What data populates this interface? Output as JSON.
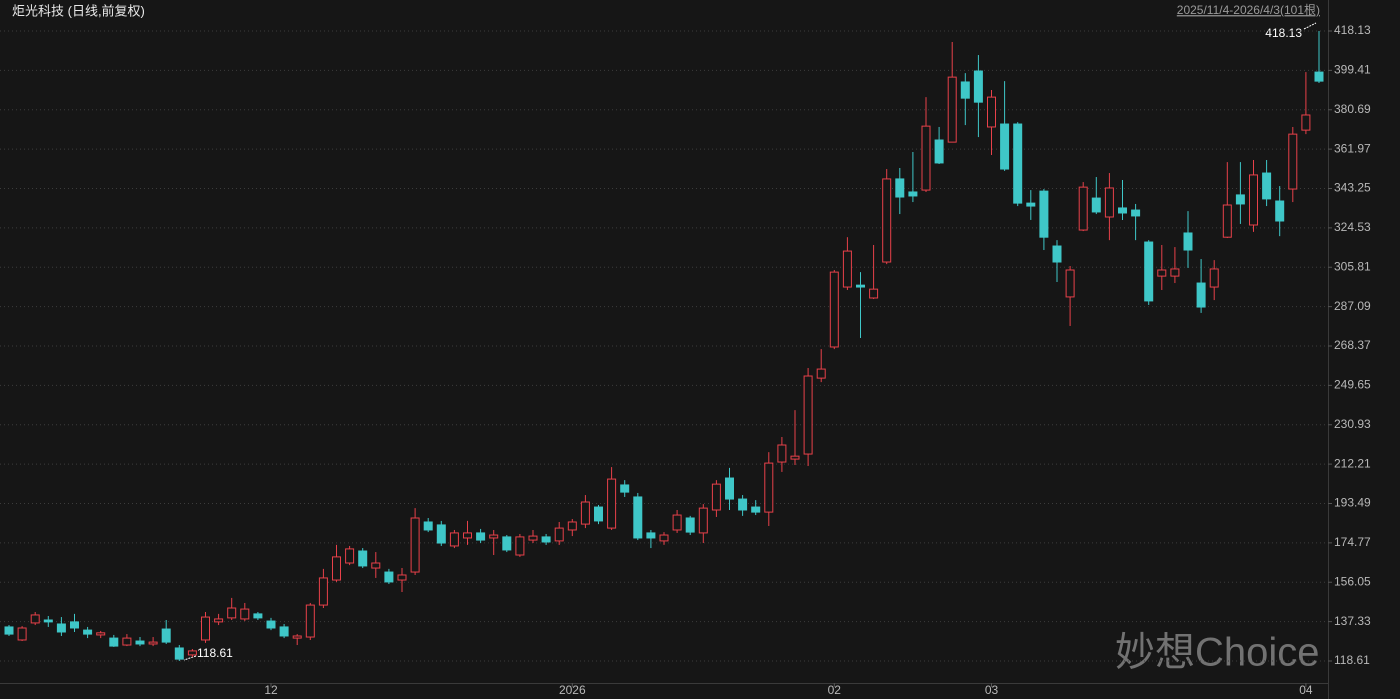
{
  "chart_data": {
    "type": "candlestick",
    "title": "炬光科技 (日线,前复权)",
    "subtitle": "2025/11/4-2026/4/3(101根)",
    "watermark": "妙想Choice",
    "annotations": [
      "418.13",
      "118.61"
    ],
    "up_color": "#e8414a",
    "down_color": "#3fc7c8",
    "grid": true,
    "ylim": [
      100.54,
      423.36
    ],
    "yticks": [
      118.61,
      137.33,
      156.05,
      174.77,
      193.49,
      212.21,
      230.93,
      249.65,
      268.37,
      287.09,
      305.81,
      324.53,
      343.25,
      361.97,
      380.69,
      399.41,
      418.13
    ],
    "categories": [
      null,
      null,
      null,
      null,
      null,
      null,
      null,
      null,
      null,
      null,
      null,
      null,
      null,
      null,
      null,
      null,
      null,
      null,
      null,
      null,
      "12",
      null,
      null,
      null,
      null,
      null,
      null,
      null,
      null,
      null,
      null,
      null,
      null,
      null,
      null,
      null,
      null,
      null,
      null,
      null,
      null,
      null,
      null,
      "2026",
      null,
      null,
      null,
      null,
      null,
      null,
      null,
      null,
      null,
      null,
      null,
      null,
      null,
      null,
      null,
      null,
      null,
      null,
      null,
      "02",
      null,
      null,
      null,
      null,
      null,
      null,
      null,
      null,
      null,
      null,
      null,
      "03",
      null,
      null,
      null,
      null,
      null,
      null,
      null,
      null,
      null,
      null,
      null,
      null,
      null,
      null,
      null,
      null,
      null,
      null,
      null,
      null,
      null,
      null,
      null,
      "04",
      null
    ],
    "open": [
      134.8,
      128.6,
      136.7,
      138.1,
      136.2,
      137.2,
      133.3,
      131.0,
      129.5,
      126.2,
      128.1,
      126.7,
      133.8,
      124.8,
      121.5,
      128.6,
      137.2,
      139.1,
      138.6,
      141.0,
      137.6,
      134.8,
      129.5,
      130.0,
      145.2,
      157.1,
      165.2,
      170.9,
      162.8,
      160.9,
      157.1,
      160.9,
      184.7,
      183.3,
      173.3,
      177.1,
      179.5,
      177.1,
      177.6,
      169.0,
      176.1,
      177.6,
      175.7,
      180.9,
      183.7,
      191.8,
      181.8,
      202.3,
      196.6,
      179.5,
      175.7,
      180.9,
      186.6,
      179.5,
      190.4,
      205.6,
      195.6,
      191.8,
      189.4,
      213.2,
      214.6,
      217.0,
      253.1,
      267.9,
      296.4,
      297.3,
      291.2,
      308.3,
      347.8,
      341.6,
      342.5,
      366.3,
      365.3,
      393.9,
      399.1,
      372.5,
      373.9,
      373.9,
      336.3,
      342.0,
      315.9,
      291.7,
      323.5,
      338.7,
      329.7,
      334.0,
      333.0,
      317.8,
      301.6,
      301.6,
      322.1,
      298.3,
      296.4,
      320.1,
      340.2,
      325.9,
      350.6,
      337.3,
      343.0,
      371.0,
      398.6
    ],
    "high": [
      135.7,
      135.2,
      141.9,
      140.0,
      139.5,
      141.0,
      134.8,
      132.9,
      131.0,
      131.4,
      130.0,
      130.0,
      138.1,
      126.2,
      124.3,
      141.9,
      141.0,
      148.6,
      146.2,
      141.9,
      139.1,
      136.2,
      131.4,
      146.2,
      162.4,
      173.8,
      173.3,
      172.3,
      170.4,
      162.4,
      162.8,
      191.3,
      186.6,
      185.2,
      180.9,
      185.2,
      181.4,
      180.9,
      178.5,
      179.0,
      180.9,
      179.0,
      184.7,
      186.1,
      197.5,
      192.8,
      210.8,
      204.6,
      198.5,
      180.9,
      179.9,
      190.4,
      187.6,
      193.2,
      204.6,
      210.4,
      197.5,
      195.1,
      217.9,
      225.1,
      237.9,
      257.9,
      266.9,
      304.5,
      320.1,
      303.5,
      316.4,
      352.5,
      353.0,
      360.6,
      386.7,
      372.5,
      412.9,
      398.1,
      406.7,
      390.1,
      394.3,
      374.8,
      342.5,
      343.0,
      318.7,
      306.4,
      346.3,
      348.7,
      350.6,
      347.3,
      335.9,
      318.7,
      316.4,
      315.4,
      332.5,
      309.7,
      309.2,
      355.8,
      355.8,
      356.8,
      356.8,
      344.4,
      372.5,
      398.6,
      418.13
    ],
    "low": [
      130.5,
      128.1,
      135.7,
      134.8,
      130.5,
      132.4,
      129.5,
      129.5,
      125.3,
      125.7,
      125.7,
      125.7,
      126.7,
      118.61,
      120.5,
      127.2,
      135.7,
      138.1,
      137.6,
      138.1,
      133.3,
      129.5,
      126.2,
      128.6,
      143.8,
      156.2,
      164.2,
      162.8,
      158.1,
      155.2,
      151.4,
      159.5,
      179.9,
      173.3,
      172.3,
      173.8,
      174.7,
      169.0,
      170.4,
      168.1,
      174.7,
      173.8,
      173.8,
      178.0,
      181.8,
      183.7,
      180.9,
      196.6,
      176.1,
      172.3,
      173.8,
      179.5,
      178.5,
      174.7,
      187.1,
      190.4,
      187.6,
      188.0,
      182.8,
      208.5,
      211.8,
      211.3,
      251.2,
      266.9,
      295.0,
      272.2,
      290.7,
      307.3,
      331.1,
      336.8,
      341.6,
      354.9,
      365.3,
      373.4,
      367.7,
      359.2,
      351.6,
      334.9,
      328.3,
      314.0,
      298.8,
      277.9,
      323.0,
      331.1,
      318.7,
      328.3,
      318.7,
      287.9,
      295.0,
      298.3,
      305.5,
      284.1,
      290.2,
      319.7,
      326.4,
      322.6,
      334.9,
      320.6,
      336.8,
      369.1,
      393.4
    ],
    "close": [
      131.4,
      134.3,
      140.5,
      137.2,
      132.4,
      134.3,
      131.4,
      132.0,
      125.7,
      129.5,
      126.7,
      127.6,
      127.6,
      119.5,
      123.4,
      139.5,
      138.6,
      143.8,
      143.3,
      139.1,
      134.3,
      130.5,
      130.5,
      145.2,
      158.1,
      168.1,
      171.9,
      163.8,
      165.2,
      156.2,
      159.5,
      186.6,
      180.9,
      174.7,
      179.5,
      179.5,
      176.1,
      178.5,
      171.4,
      177.6,
      178.0,
      175.2,
      181.8,
      184.7,
      194.2,
      185.2,
      205.1,
      198.9,
      177.1,
      177.1,
      178.5,
      188.0,
      179.9,
      191.3,
      202.7,
      195.6,
      190.4,
      189.4,
      212.7,
      221.3,
      216.0,
      254.1,
      257.4,
      303.5,
      313.5,
      296.4,
      295.4,
      347.8,
      339.2,
      339.7,
      372.9,
      355.4,
      396.2,
      386.2,
      384.3,
      386.7,
      352.5,
      336.3,
      334.9,
      320.1,
      308.3,
      304.5,
      343.9,
      332.1,
      343.5,
      331.6,
      330.2,
      289.8,
      304.5,
      305.0,
      314.0,
      286.9,
      305.0,
      335.4,
      335.9,
      349.7,
      338.3,
      327.8,
      369.1,
      378.2,
      394.3
    ]
  }
}
